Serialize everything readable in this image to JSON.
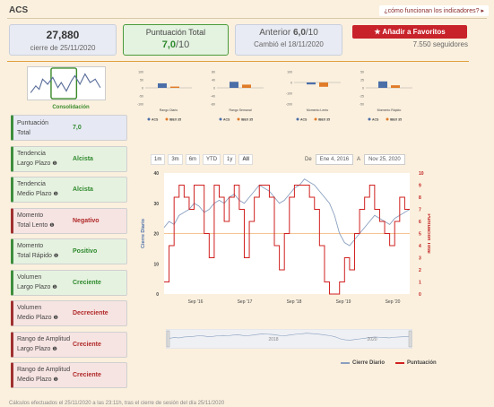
{
  "header": {
    "ticker": "ACS",
    "how_link": "¿cómo funcionan los indicadores? ▸"
  },
  "cards": {
    "price": {
      "value": "27,880",
      "sub": "cierre de 25/11/2020"
    },
    "score": {
      "label": "Puntuación Total",
      "value": "7,0",
      "denom": "/10"
    },
    "previous": {
      "label": "Anterior",
      "value": "6,0",
      "denom": "/10",
      "sub": "Cambió el 18/11/2020"
    }
  },
  "favorites": {
    "label": "Añadir a Favoritos",
    "followers": "7.550 seguidores"
  },
  "spark_label": "Consolidación",
  "indicators": [
    {
      "name1": "Puntuación",
      "name2": "Total",
      "value": "7,0",
      "kind": "blue"
    },
    {
      "name1": "Tendencia",
      "name2": "Largo Plazo",
      "value": "Alcista",
      "kind": "green"
    },
    {
      "name1": "Tendencia",
      "name2": "Medio Plazo",
      "value": "Alcista",
      "kind": "green"
    },
    {
      "name1": "Momento",
      "name2": "Total Lento",
      "value": "Negativo",
      "kind": "red"
    },
    {
      "name1": "Momento",
      "name2": "Total Rápido",
      "value": "Positivo",
      "kind": "green"
    },
    {
      "name1": "Volumen",
      "name2": "Largo Plazo",
      "value": "Creciente",
      "kind": "green"
    },
    {
      "name1": "Volumen",
      "name2": "Medio Plazo",
      "value": "Decreciente",
      "kind": "red"
    },
    {
      "name1": "Rango de Amplitud",
      "name2": "Largo Plazo",
      "value": "Creciente",
      "kind": "red"
    },
    {
      "name1": "Rango de Amplitud",
      "name2": "Medio Plazo",
      "value": "Creciente",
      "kind": "red"
    }
  ],
  "mini_charts": [
    {
      "title": "Rango Diario",
      "ticks": [
        "100",
        "50",
        "0",
        "-50",
        "-100"
      ],
      "acs": 28,
      "ibex": 8
    },
    {
      "title": "Rango Semanal",
      "ticks": [
        "80",
        "40",
        "0",
        "-40",
        "-80"
      ],
      "acs": 30,
      "ibex": 16
    },
    {
      "title": "Momento Lento",
      "ticks": [
        "100",
        "0",
        "-100",
        "-200"
      ],
      "acs": -18,
      "ibex": -40
    },
    {
      "title": "Momento Rápido",
      "ticks": [
        "50",
        "25",
        "0",
        "-25",
        "-50"
      ],
      "acs": 20,
      "ibex": 8
    }
  ],
  "mini_legend": {
    "acs": "ACS",
    "ibex": "IBEX 35"
  },
  "range_buttons": [
    "1m",
    "3m",
    "6m",
    "YTD",
    "1y",
    "All"
  ],
  "date_range": {
    "from_label": "De",
    "from": "Ene 4, 2016",
    "to_label": "A",
    "to": "Nov 25, 2020"
  },
  "chart_data": {
    "type": "line",
    "ylabel": "Cierre Diario",
    "y2label": "Puntuación Total",
    "ylim": [
      0,
      40
    ],
    "y2lim": [
      0,
      10
    ],
    "y_ticks": [
      "40",
      "30",
      "20",
      "10",
      "0"
    ],
    "y2_ticks": [
      "10",
      "9",
      "8",
      "7",
      "6",
      "5",
      "4",
      "3",
      "2",
      "1",
      "0"
    ],
    "x_ticks": [
      "Sep '16",
      "Sep '17",
      "Sep '18",
      "Sep '19",
      "Sep '20"
    ],
    "series": [
      {
        "name": "Cierre Diario",
        "color": "#8a9fbf",
        "values": [
          22,
          24,
          23,
          26,
          27,
          28,
          30,
          29,
          27,
          28,
          30,
          31,
          30,
          32,
          33,
          31,
          30,
          32,
          34,
          36,
          35,
          34,
          32,
          30,
          31,
          33,
          35,
          36,
          38,
          37,
          36,
          34,
          32,
          30,
          26,
          20,
          17,
          16,
          18,
          20,
          22,
          24,
          26,
          25,
          24,
          23,
          25,
          26,
          27,
          28
        ]
      },
      {
        "name": "Puntuación",
        "color": "#d02020",
        "values": [
          1,
          4,
          8,
          9,
          8,
          7,
          9,
          9,
          5,
          3,
          9,
          8,
          6,
          8,
          9,
          7,
          3,
          6,
          8,
          9,
          9,
          8,
          4,
          2,
          5,
          8,
          9,
          9,
          9,
          8,
          7,
          4,
          1,
          0,
          0,
          1,
          3,
          2,
          5,
          7,
          8,
          9,
          7,
          6,
          5,
          4,
          6,
          8,
          7,
          7
        ]
      }
    ]
  },
  "nav_ticks": [
    "2018",
    "2020"
  ],
  "legend": {
    "series1": "Cierre Diario",
    "series2": "Puntuación"
  },
  "footer": "Cálculos efectuados el 25/11/2020 a las 23:11h, tras el cierre de sesión del día 25/11/2020"
}
